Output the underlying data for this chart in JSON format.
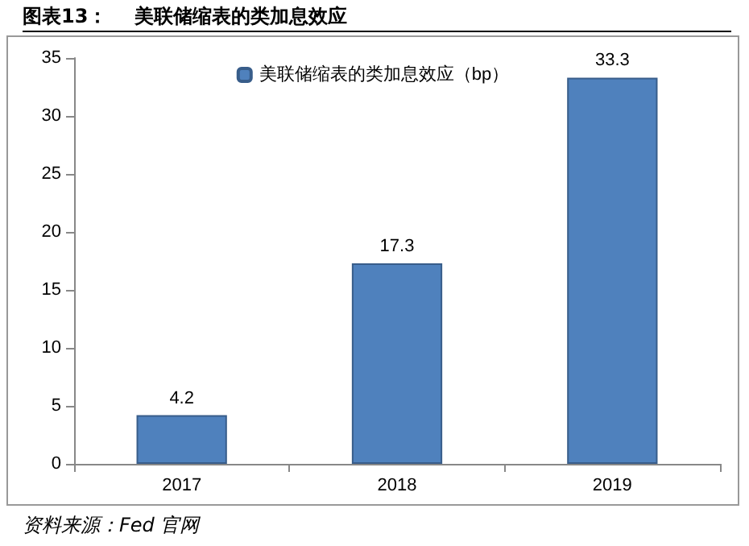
{
  "chart_data": {
    "type": "bar",
    "title": "图表13：    美联储缩表的类加息效应",
    "categories": [
      "2017",
      "2018",
      "2019"
    ],
    "series": [
      {
        "name": "美联储缩表的类加息效应（bp）",
        "color": "#4f81bd",
        "values": [
          4.2,
          17.3,
          33.3
        ]
      }
    ],
    "ylim": [
      0,
      35
    ],
    "yticks": [
      0,
      5,
      10,
      15,
      20,
      25,
      30,
      35
    ],
    "grid": false,
    "legend": "top",
    "data_labels": true,
    "annotations": [
      "资料来源：Fed 官网"
    ]
  }
}
